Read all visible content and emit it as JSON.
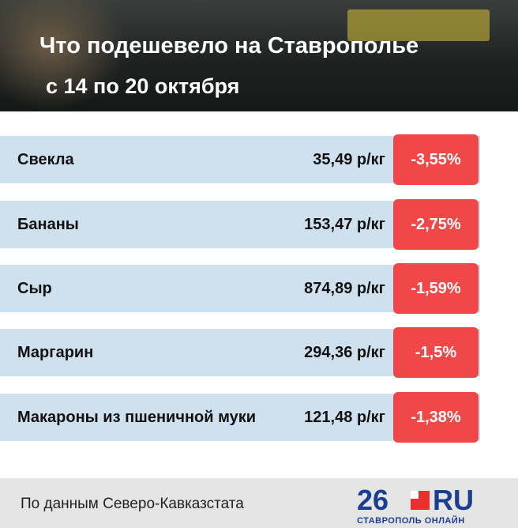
{
  "header": {
    "title": "Что подешевело на Ставрополье",
    "subtitle": "с 14 по 20 октября"
  },
  "table": {
    "rows": [
      [
        "Свекла",
        "35,49 р/кг",
        "-3,55%"
      ],
      [
        "Бананы",
        "153,47 р/кг",
        "-2,75%"
      ],
      [
        "Сыр",
        "874,89 р/кг",
        "-1,59%"
      ],
      [
        "Маргарин",
        "294,36 р/кг",
        "-1,5%"
      ],
      [
        "Макароны из пшеничной муки",
        "121,48 р/кг",
        "-1,38%"
      ]
    ]
  },
  "footer": {
    "source": "По данным Северо-Кавказстата",
    "logo_number": "26",
    "logo_text": "RU",
    "logo_tagline": "СТАВРОПОЛЬ ОНЛАЙН"
  }
}
